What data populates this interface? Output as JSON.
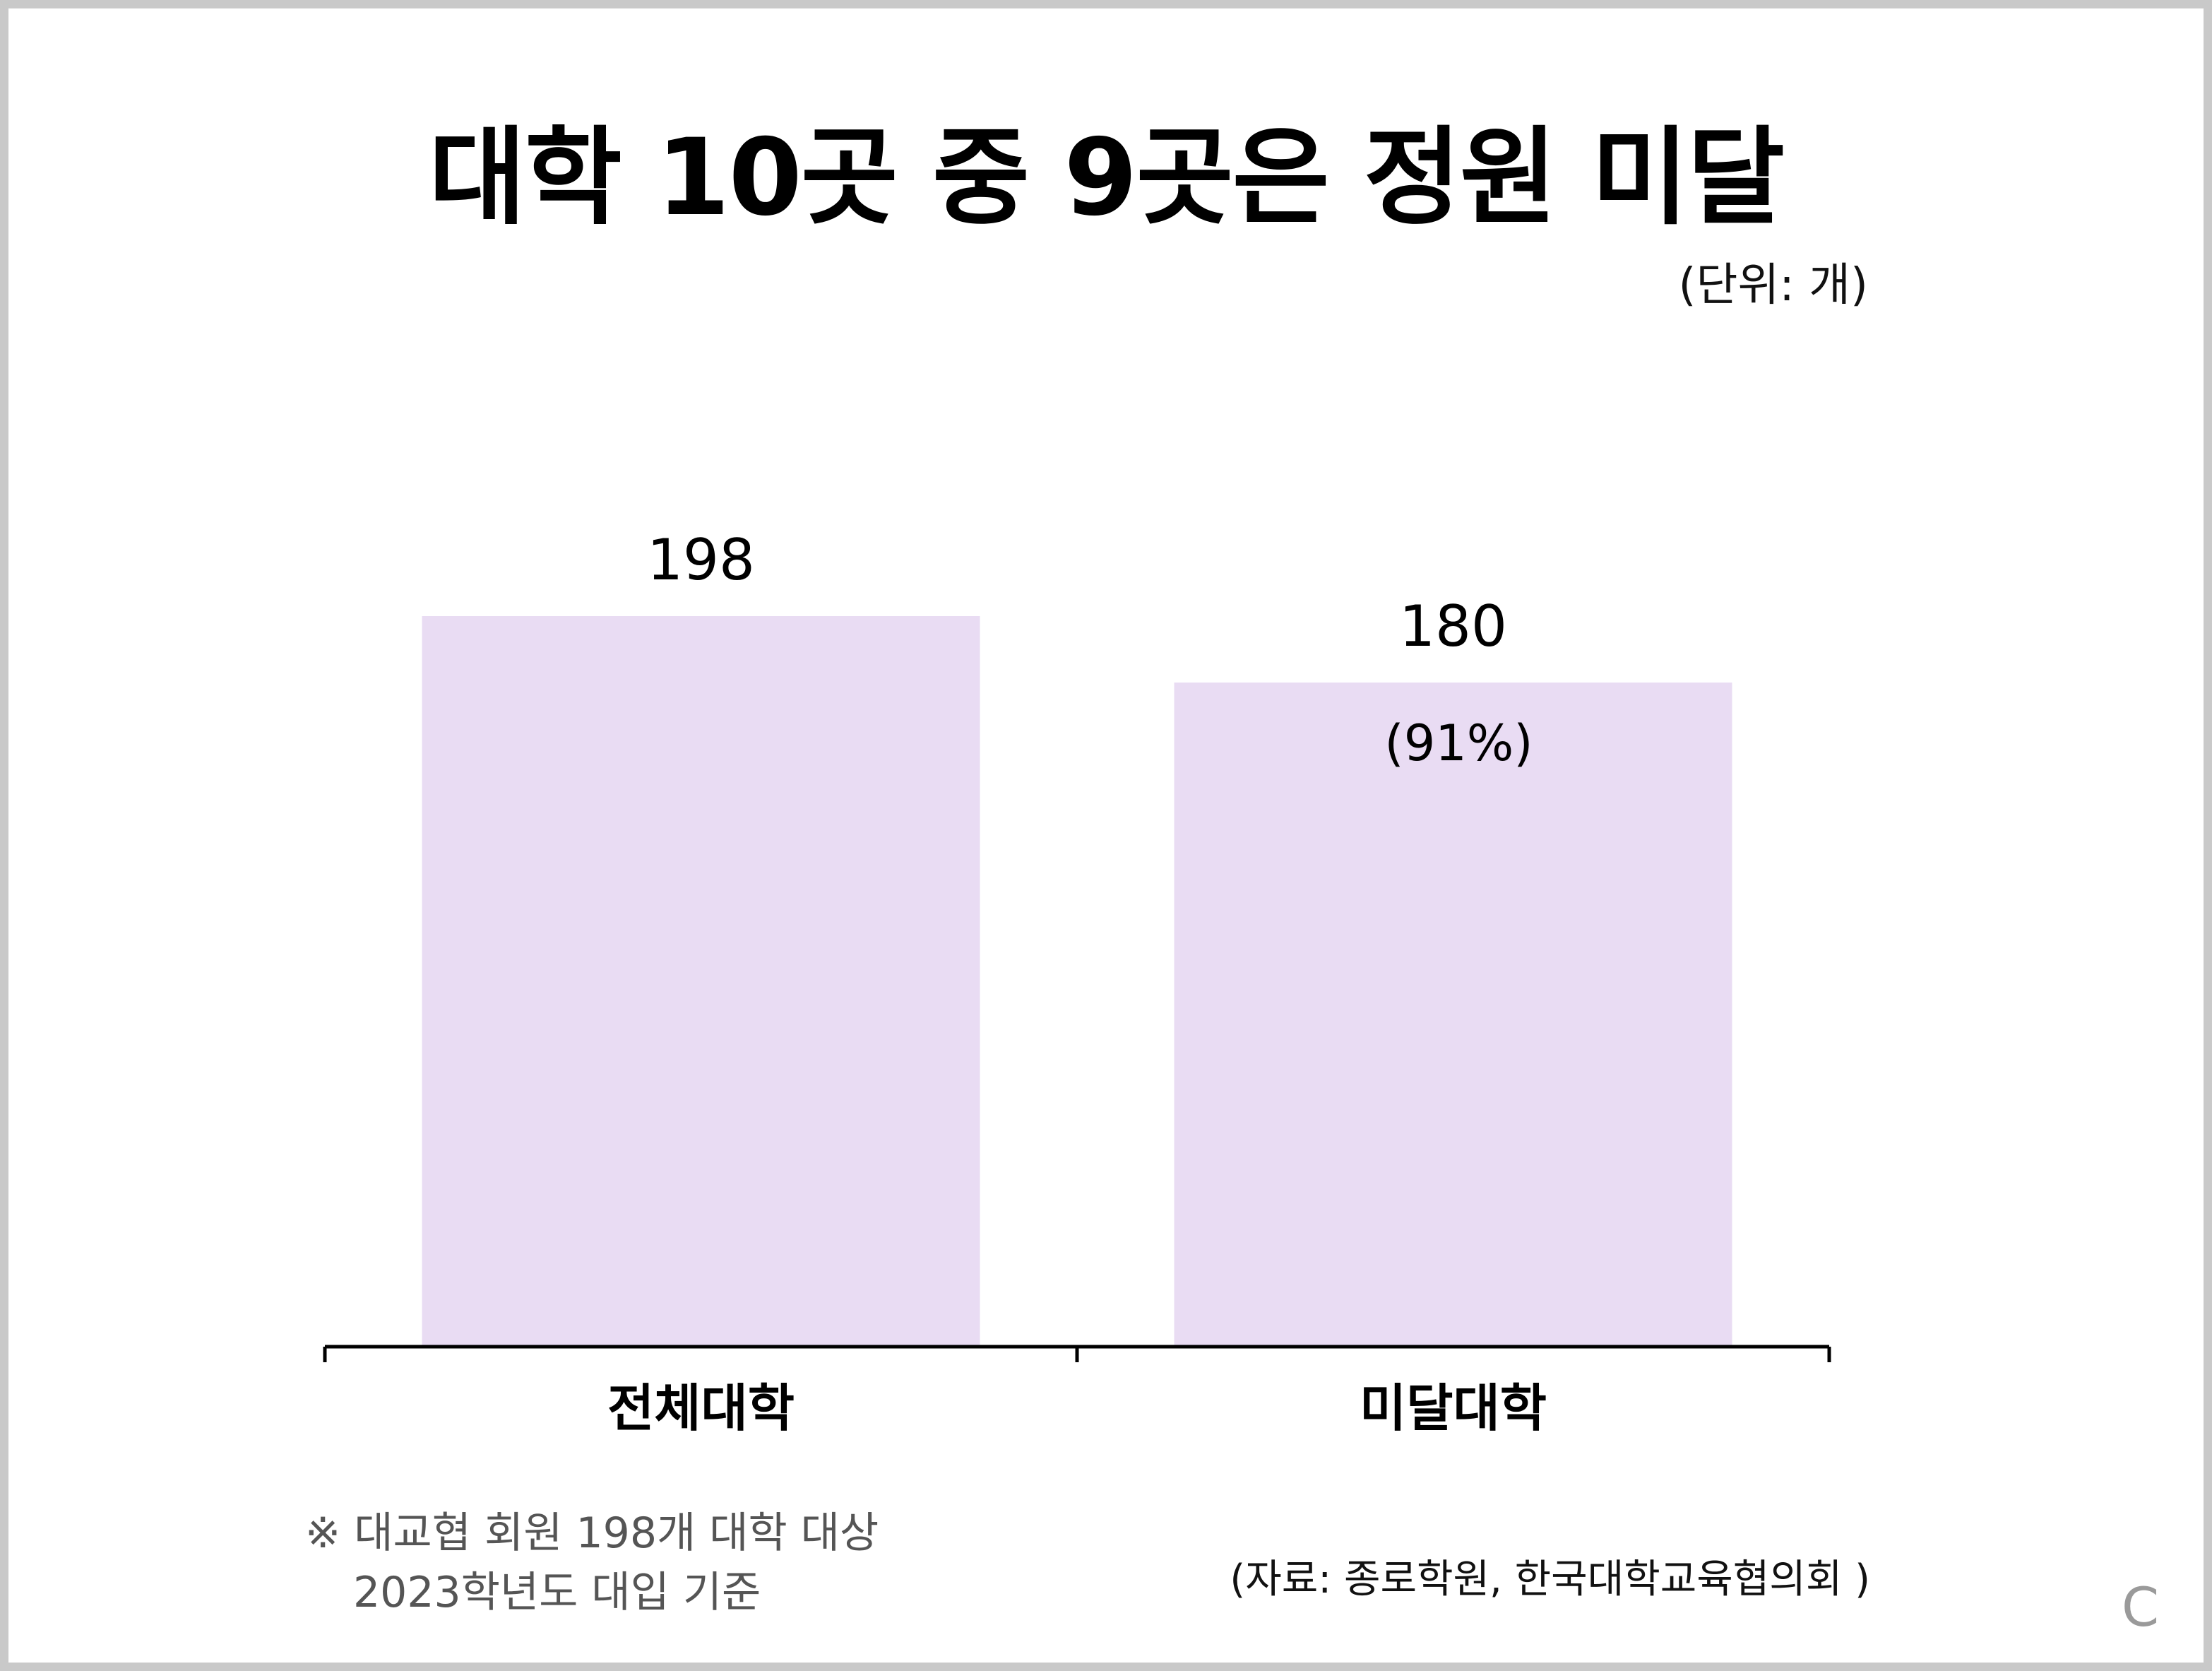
{
  "title": "대학 10곳 중 9곳은 정원 미달",
  "unit_label": "(단위: 개)",
  "chart_data": {
    "type": "bar",
    "title": "대학 10곳 중 9곳은 정원 미달",
    "categories": [
      "전체대학",
      "미달대학"
    ],
    "values": [
      198,
      180
    ],
    "value_labels": [
      "198",
      "180"
    ],
    "annotations": [
      "",
      "(91%)"
    ],
    "ylim": [
      0,
      198
    ],
    "xlabel": "",
    "ylabel": "",
    "grid": false,
    "bar_color": "#e9dcf3"
  },
  "footnote": {
    "line1": "※ 대교협 회원 198개 대학 대상",
    "line2": "2023학년도 대입 기준"
  },
  "source": "(자료: 종로학원, 한국대학교육협의회 )",
  "corner_mark": "C",
  "colors": {
    "bar": "#e9dcf3",
    "axis": "#000000",
    "text": "#111111",
    "frame": "#c9c9c9"
  }
}
